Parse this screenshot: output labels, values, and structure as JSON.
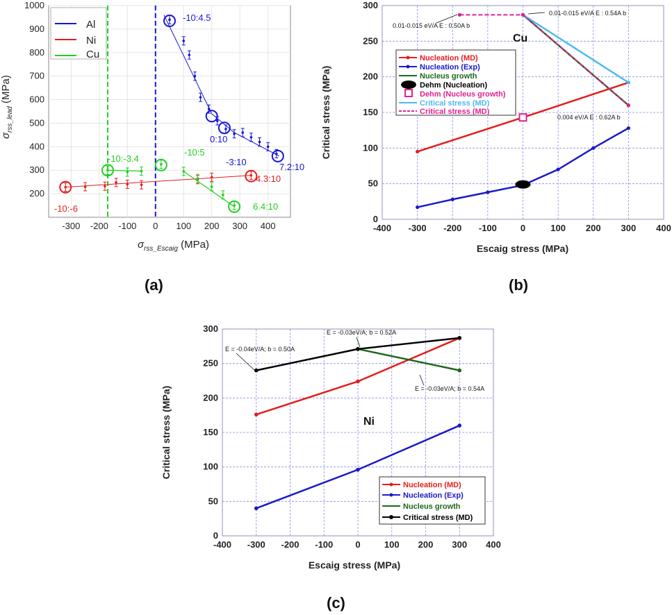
{
  "chart_data": [
    {
      "panel": "(a)",
      "type": "scatter",
      "xlabel_main": "σ",
      "xlabel_sub": "rss_Escaig",
      "xlabel_unit": " (MPa)",
      "ylabel_main": "σ",
      "ylabel_sub": "rss_lead",
      "ylabel_unit": " (MPa)",
      "xlim": [
        -380,
        480
      ],
      "ylim": [
        100,
        1000
      ],
      "xticks": [
        -300,
        -200,
        -100,
        0,
        100,
        200,
        300,
        400
      ],
      "yticks": [
        200,
        300,
        400,
        500,
        600,
        700,
        800,
        900,
        1000
      ],
      "grid": true,
      "legend_position": "top-left",
      "series": [
        {
          "name": "Al",
          "color": "#1515d8",
          "points": [
            [
              50,
              940
            ],
            [
              100,
              850
            ],
            [
              120,
              790
            ],
            [
              140,
              700
            ],
            [
              160,
              610
            ],
            [
              190,
              560
            ],
            [
              220,
              510
            ],
            [
              250,
              475
            ],
            [
              280,
              455
            ],
            [
              310,
              460
            ],
            [
              340,
              440
            ],
            [
              370,
              420
            ],
            [
              400,
              400
            ],
            [
              430,
              370
            ]
          ],
          "fit": [
            [
              30,
              960
            ],
            [
              200,
              540
            ],
            [
              280,
              460
            ],
            [
              440,
              360
            ]
          ],
          "circled": [
            [
              50,
              935
            ],
            [
              200,
              530
            ],
            [
              245,
              480
            ],
            [
              435,
              360
            ]
          ]
        },
        {
          "name": "Ni",
          "color": "#e51c1c",
          "points": [
            [
              -320,
              228
            ],
            [
              -250,
              230
            ],
            [
              -180,
              232
            ],
            [
              -140,
              248
            ],
            [
              -100,
              240
            ],
            [
              -50,
              238
            ],
            [
              150,
              260
            ],
            [
              200,
              270
            ],
            [
              340,
              278
            ]
          ],
          "fit": [
            [
              -320,
              228
            ],
            [
              340,
              278
            ]
          ],
          "circled": [
            [
              -320,
              228
            ],
            [
              340,
              275
            ]
          ]
        },
        {
          "name": "Cu",
          "color": "#1fd01f",
          "points": [
            [
              -170,
              300
            ],
            [
              -100,
              292
            ],
            [
              -50,
              296
            ],
            [
              20,
              325
            ],
            [
              100,
              295
            ],
            [
              150,
              265
            ],
            [
              200,
              230
            ],
            [
              240,
              195
            ],
            [
              280,
              150
            ]
          ],
          "fit_branch1": [
            [
              -170,
              300
            ],
            [
              -50,
              296
            ]
          ],
          "fit_branch2": [
            [
              100,
              295
            ],
            [
              280,
              145
            ]
          ],
          "circled": [
            [
              -170,
              300
            ],
            [
              20,
              322
            ],
            [
              280,
              145
            ]
          ]
        }
      ],
      "vlines": [
        {
          "x": -170,
          "color": "#1fd01f"
        },
        {
          "x": 0,
          "color": "#1515d8"
        }
      ],
      "annotations": [
        {
          "text": "-10:4.5",
          "color": "#1515d8"
        },
        {
          "text": "-3:10",
          "color": "#1515d8"
        },
        {
          "text": "0:10",
          "color": "#1515d8"
        },
        {
          "text": "7.2:10",
          "color": "#1515d8"
        },
        {
          "text": "-10:-3.4",
          "color": "#1fd01f"
        },
        {
          "text": "-10:5",
          "color": "#1fd01f"
        },
        {
          "text": "6.4:10",
          "color": "#1fd01f"
        },
        {
          "text": "-10:-6",
          "color": "#e51c1c"
        },
        {
          "text": "4.3:10",
          "color": "#e51c1c"
        }
      ]
    },
    {
      "panel": "(b)",
      "type": "line",
      "xlabel": "Escaig stress (MPa)",
      "ylabel": "Critical stress (MPa)",
      "xlim": [
        -400,
        400
      ],
      "ylim": [
        0,
        300
      ],
      "xticks": [
        -400,
        -300,
        -200,
        -100,
        0,
        100,
        200,
        300,
        400
      ],
      "yticks": [
        0,
        50,
        100,
        150,
        200,
        250,
        300
      ],
      "grid": true,
      "legend_position": "middle-left",
      "inner_label": "Cu",
      "series": [
        {
          "name": "Nucleation (MD)",
          "color": "#e51c1c",
          "x": [
            -300,
            0,
            300
          ],
          "y": [
            95,
            143,
            192
          ]
        },
        {
          "name": "Nucleation (Exp)",
          "color": "#1a1ac8",
          "x": [
            -300,
            -200,
            -100,
            0,
            100,
            200,
            300
          ],
          "y": [
            17,
            28,
            38,
            48,
            70,
            100,
            128
          ]
        },
        {
          "name": "Nucleus growth",
          "color": "#1a6a1a",
          "x": [
            0,
            300
          ],
          "y": [
            287,
            160
          ]
        },
        {
          "name": "Dehm (Nucleation)",
          "color": "#000000",
          "x": [
            0
          ],
          "y": [
            49
          ]
        },
        {
          "name": "Dehm (Nucleus growth)",
          "color": "#e02090",
          "x": [
            0
          ],
          "y": [
            143
          ]
        },
        {
          "name": "Critical stress (MD)",
          "color": "#4fb8ee",
          "x": [
            0,
            300
          ],
          "y": [
            287,
            192
          ]
        },
        {
          "name": "Critical stress (MD)",
          "color": "#e02090",
          "dashed": true,
          "x": [
            -180,
            0,
            300
          ],
          "y": [
            287,
            287,
            160
          ]
        }
      ],
      "annotations": [
        {
          "text": "0.01-0.015 eV/A E   : 0.50A b",
          "sub1": "sf",
          "sub2": "e"
        },
        {
          "text": "0.01-0.015 eV/A E   : 0.54A b",
          "sub1": "sf",
          "sub2": "e"
        },
        {
          "text": "0.004 eV/A E   : 0.62A b",
          "sub1": "sf",
          "sub2": "e"
        }
      ]
    },
    {
      "panel": "(c)",
      "type": "line",
      "xlabel": "Escaig stress (MPa)",
      "ylabel": "Critical stress (MPa)",
      "xlim": [
        -400,
        400
      ],
      "ylim": [
        0,
        300
      ],
      "xticks": [
        -400,
        -300,
        -200,
        -100,
        0,
        100,
        200,
        300,
        400
      ],
      "yticks": [
        0,
        50,
        100,
        150,
        200,
        250,
        300
      ],
      "grid": true,
      "legend_position": "bottom-right",
      "inner_label": "Ni",
      "series": [
        {
          "name": "Nucleation (MD)",
          "color": "#e51c1c",
          "x": [
            -300,
            0,
            300
          ],
          "y": [
            176,
            224,
            287
          ]
        },
        {
          "name": "Nucleation (Exp)",
          "color": "#1a1ac8",
          "x": [
            -300,
            0,
            300
          ],
          "y": [
            40,
            96,
            160
          ]
        },
        {
          "name": "Nucleus growth",
          "color": "#1a6a1a",
          "x": [
            0,
            300
          ],
          "y": [
            271,
            240
          ]
        },
        {
          "name": "Critical stress (MD)",
          "color": "#000000",
          "x": [
            -300,
            0,
            300
          ],
          "y": [
            240,
            271,
            287
          ]
        }
      ],
      "annotations": [
        {
          "text": "E   = -0.04eV/A; b  = 0.50A",
          "sub1": "sf",
          "sub2": "e"
        },
        {
          "text": "E   = -0.03eV/A; b  = 0.52A",
          "sub1": "sf",
          "sub2": "e"
        },
        {
          "text": "E   = -0.03eV/A; b  = 0.54A",
          "sub1": "sf",
          "sub2": "e"
        }
      ]
    }
  ]
}
